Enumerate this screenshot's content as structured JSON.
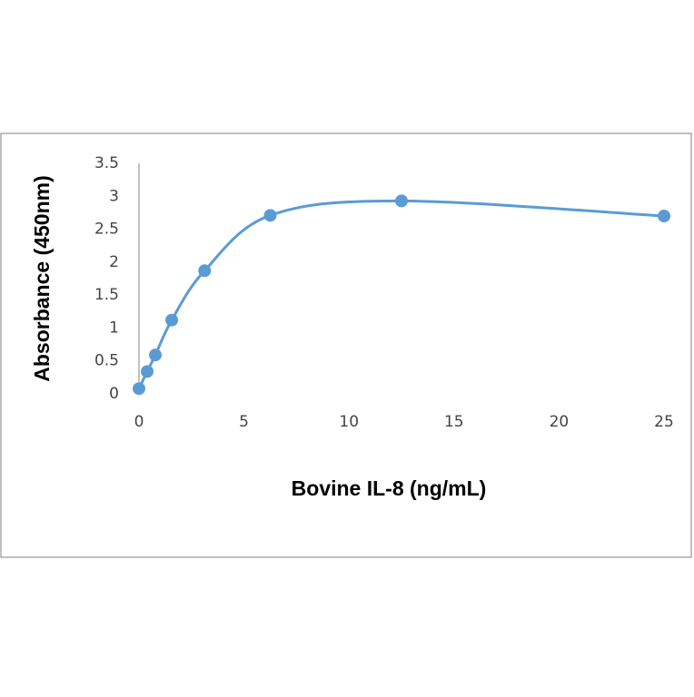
{
  "chart_data": {
    "type": "scatter",
    "smooth": true,
    "x_label": "Bovine IL-8 (ng/mL)",
    "y_label": "Absorbance (450nm)",
    "series": [
      {
        "name": null,
        "color": "#5b9bd5",
        "x": [
          0,
          0.39,
          0.78,
          1.56,
          3.125,
          6.25,
          12.5,
          25
        ],
        "values": [
          0.08,
          0.34,
          0.59,
          1.12,
          1.87,
          2.71,
          2.93,
          2.7
        ]
      }
    ],
    "xlim": [
      0,
      25
    ],
    "xticks": [
      0,
      5,
      10,
      15,
      20,
      25
    ],
    "ylim": [
      0,
      3.5
    ],
    "yticks": [
      0,
      0.5,
      1,
      1.5,
      2,
      2.5,
      3,
      3.5
    ],
    "grid": false
  }
}
